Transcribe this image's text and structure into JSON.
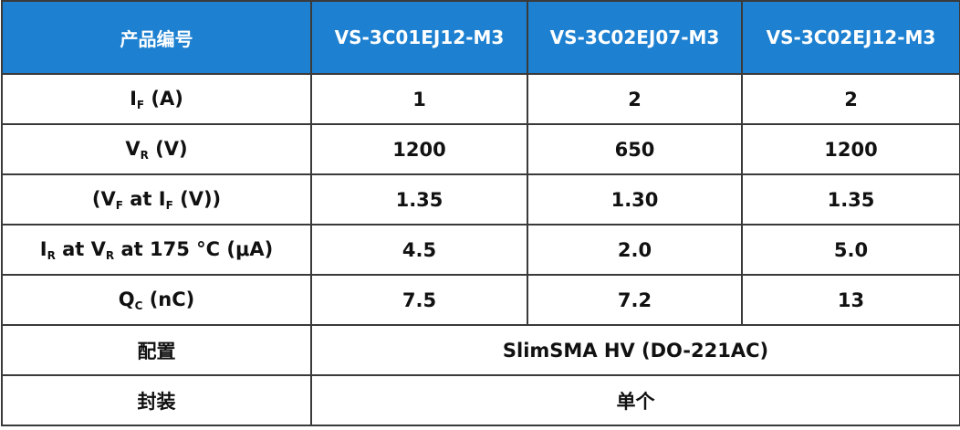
{
  "table": {
    "header": [
      "产品编号",
      "VS-3C01EJ12-M3",
      "VS-3C02EJ07-M3",
      "VS-3C02EJ12-M3"
    ],
    "rows": [
      {
        "label": [
          {
            "t": "I"
          },
          {
            "sub": "F"
          },
          {
            "t": " (A)"
          }
        ],
        "cells": [
          "1",
          "2",
          "2"
        ]
      },
      {
        "label": [
          {
            "t": "V"
          },
          {
            "sub": "R"
          },
          {
            "t": " (V)"
          }
        ],
        "cells": [
          "1200",
          "650",
          "1200"
        ]
      },
      {
        "label": [
          {
            "t": "(V"
          },
          {
            "sub": "F"
          },
          {
            "t": " at I"
          },
          {
            "sub": "F"
          },
          {
            "t": " (V))"
          }
        ],
        "cells": [
          "1.35",
          "1.30",
          "1.35"
        ]
      },
      {
        "label": [
          {
            "t": "I"
          },
          {
            "sub": "R"
          },
          {
            "t": " at V"
          },
          {
            "sub": "R"
          },
          {
            "t": " at 175 °C (μA)"
          }
        ],
        "cells": [
          "4.5",
          "2.0",
          "5.0"
        ]
      },
      {
        "label": [
          {
            "t": "Q"
          },
          {
            "sub": "C"
          },
          {
            "t": " (nC)"
          }
        ],
        "cells": [
          "7.5",
          "7.2",
          "13"
        ]
      },
      {
        "label": [
          {
            "t": "配置"
          }
        ],
        "cells": [
          "SlimSMA HV (DO-221AC)"
        ]
      },
      {
        "label": [
          {
            "t": "封装"
          }
        ],
        "cells": [
          "单个"
        ]
      }
    ]
  }
}
